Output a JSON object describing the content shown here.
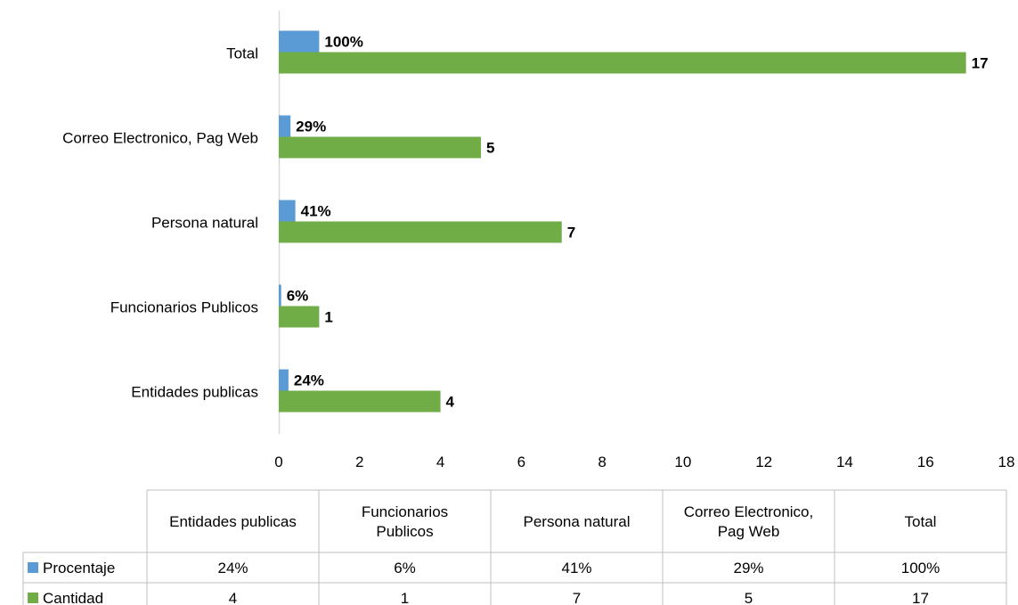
{
  "chart_data": {
    "type": "bar",
    "orientation": "horizontal",
    "categories": [
      "Entidades publicas",
      "Funcionarios Publicos",
      "Persona natural",
      "Correo Electronico, Pag Web",
      "Total"
    ],
    "series": [
      {
        "name": "Procentaje",
        "values": [
          0.24,
          0.06,
          0.41,
          0.29,
          1.0
        ],
        "labels": [
          "24%",
          "6%",
          "41%",
          "29%",
          "100%"
        ],
        "color": "#5B9BD5"
      },
      {
        "name": "Cantidad",
        "values": [
          4,
          1,
          7,
          5,
          17
        ],
        "labels": [
          "4",
          "1",
          "7",
          "5",
          "17"
        ],
        "color": "#70AD47"
      }
    ],
    "xlim": [
      0,
      18
    ],
    "x_ticks": [
      "0",
      "2",
      "4",
      "6",
      "8",
      "10",
      "12",
      "14",
      "16",
      "18"
    ],
    "grid": false,
    "legend": "data table below chart",
    "data_table": {
      "headers": [
        "Entidades publicas",
        "Funcionarios\nPublicos",
        "Persona natural",
        "Correo Electronico,\nPag Web",
        "Total"
      ],
      "rows": [
        {
          "series": "Procentaje",
          "cells": [
            "24%",
            "6%",
            "41%",
            "29%",
            "100%"
          ]
        },
        {
          "series": "Cantidad",
          "cells": [
            "4",
            "1",
            "7",
            "5",
            "17"
          ]
        }
      ]
    }
  }
}
